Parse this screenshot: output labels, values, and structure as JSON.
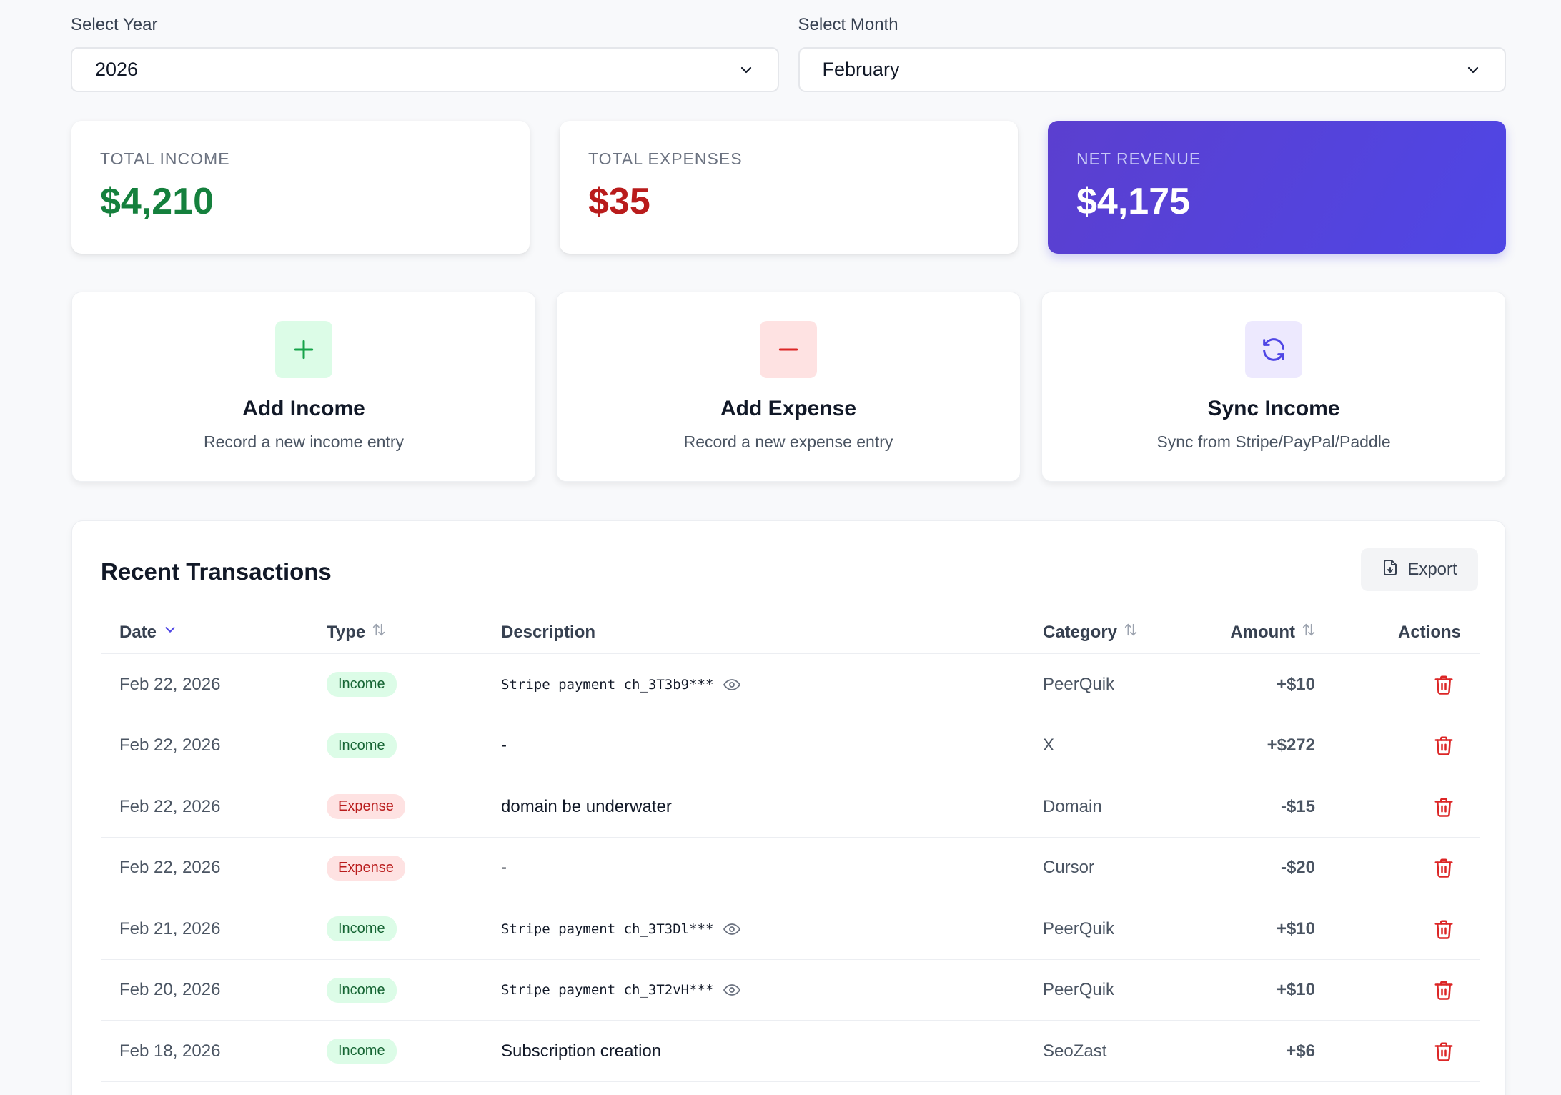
{
  "filters": {
    "year_label": "Select Year",
    "year_value": "2026",
    "month_label": "Select Month",
    "month_value": "February"
  },
  "stats": {
    "income_label": "TOTAL INCOME",
    "income_value": "$4,210",
    "expenses_label": "TOTAL EXPENSES",
    "expenses_value": "$35",
    "net_label": "NET REVENUE",
    "net_value": "$4,175"
  },
  "actions": [
    {
      "title": "Add Income",
      "subtitle": "Record a new income entry",
      "icon": "plus-icon"
    },
    {
      "title": "Add Expense",
      "subtitle": "Record a new expense entry",
      "icon": "minus-icon"
    },
    {
      "title": "Sync Income",
      "subtitle": "Sync from Stripe/PayPal/Paddle",
      "icon": "sync-icon"
    }
  ],
  "transactions": {
    "title": "Recent Transactions",
    "export_label": "Export",
    "columns": {
      "date": "Date",
      "type": "Type",
      "description": "Description",
      "category": "Category",
      "amount": "Amount",
      "actions": "Actions"
    },
    "rows": [
      {
        "date": "Feb 22, 2026",
        "type": "Income",
        "description": "Stripe payment ch_3T3b9***",
        "category": "PeerQuik",
        "amount": "+$10"
      },
      {
        "date": "Feb 22, 2026",
        "type": "Income",
        "description": "-",
        "category": "X",
        "amount": "+$272"
      },
      {
        "date": "Feb 22, 2026",
        "type": "Expense",
        "description": "domain be underwater",
        "category": "Domain",
        "amount": "-$15"
      },
      {
        "date": "Feb 22, 2026",
        "type": "Expense",
        "description": "-",
        "category": "Cursor",
        "amount": "-$20"
      },
      {
        "date": "Feb 21, 2026",
        "type": "Income",
        "description": "Stripe payment ch_3T3Dl***",
        "category": "PeerQuik",
        "amount": "+$10"
      },
      {
        "date": "Feb 20, 2026",
        "type": "Income",
        "description": "Stripe payment ch_3T2vH***",
        "category": "PeerQuik",
        "amount": "+$10"
      },
      {
        "date": "Feb 18, 2026",
        "type": "Income",
        "description": "Subscription creation",
        "category": "SeoZast",
        "amount": "+$6"
      }
    ]
  },
  "colors": {
    "income": "#15803d",
    "expense": "#b91c1c",
    "accent": "#4f46e5"
  }
}
